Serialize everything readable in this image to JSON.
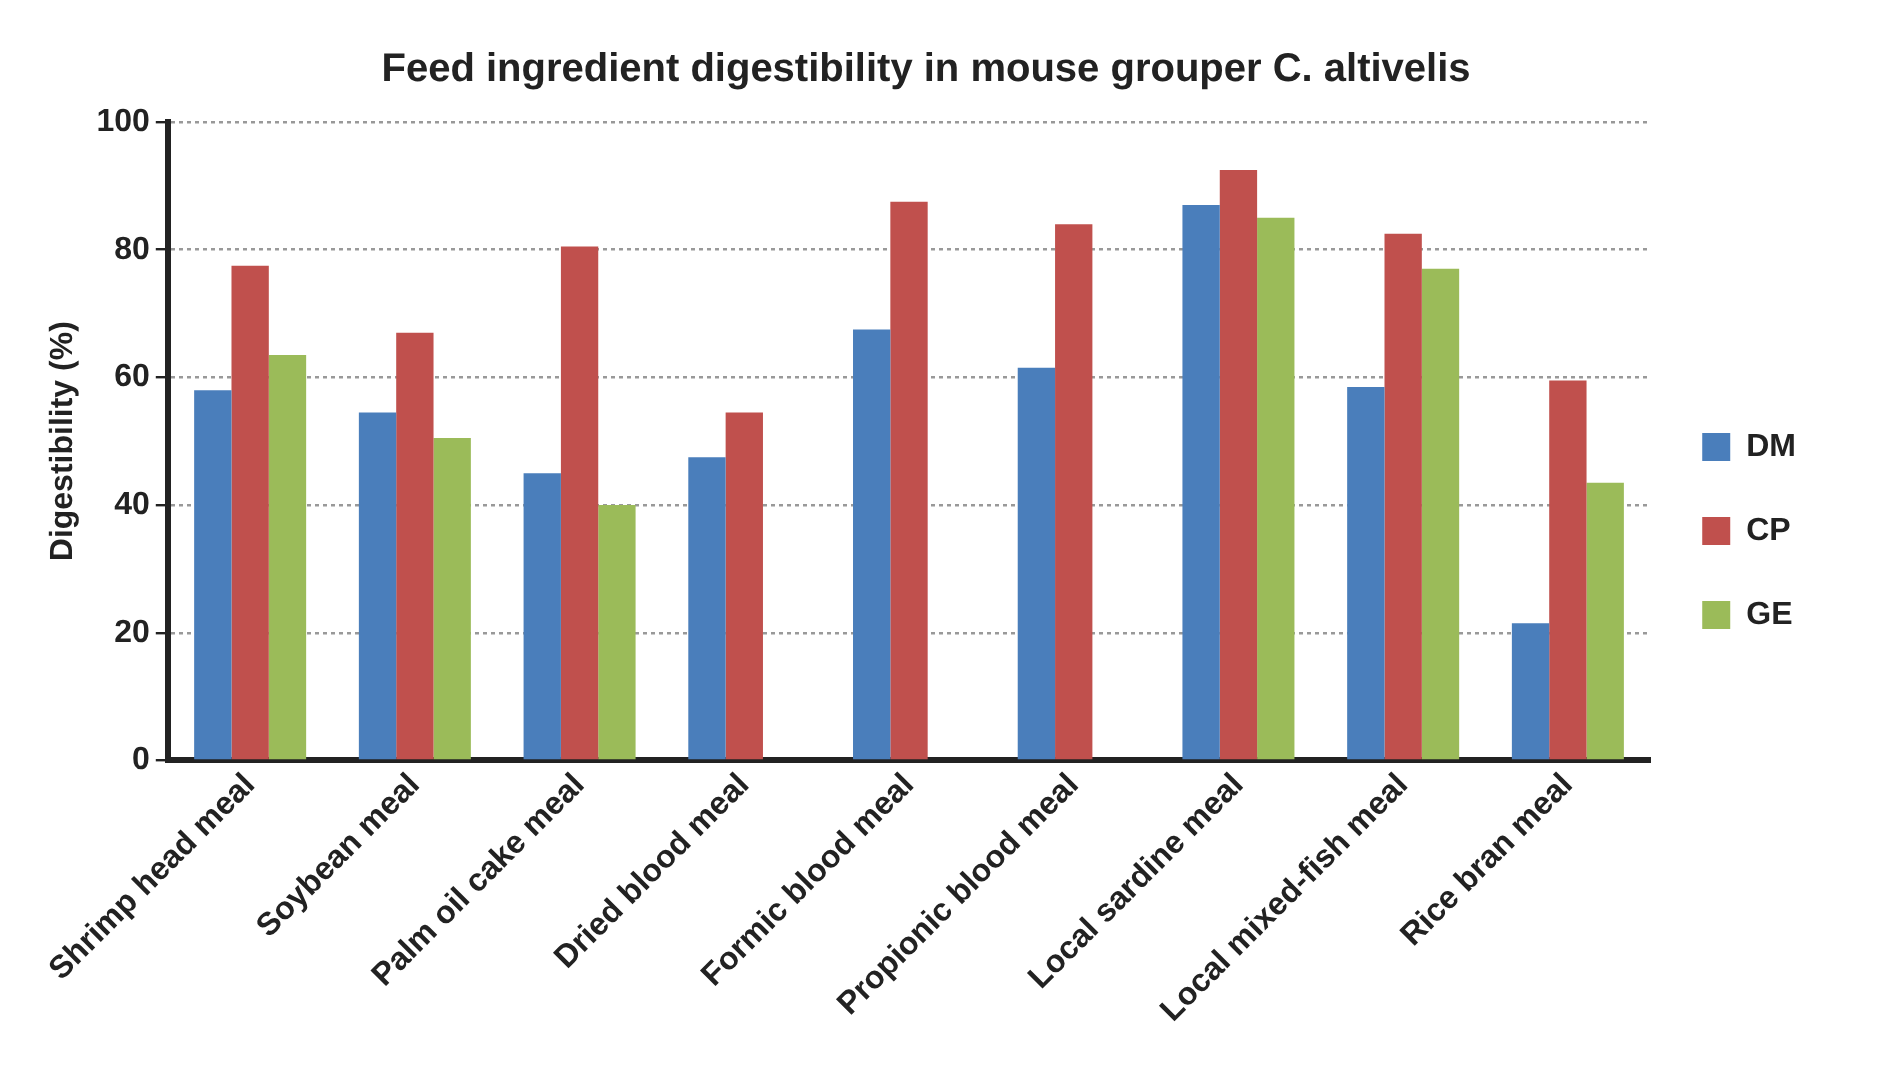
{
  "chart_data": {
    "type": "bar",
    "title": "Feed ingredient digestibility in mouse grouper C. altivelis",
    "ylabel": "Digestibility (%)",
    "categories": [
      "Shrimp head meal",
      "Soybean meal",
      "Palm oil cake meal",
      "Dried blood meal",
      "Formic blood meal",
      "Propionic blood meal",
      "Local sardine meal",
      "Local mixed-fish meal",
      "Rice bran meal"
    ],
    "series": [
      {
        "name": "DM",
        "color": "#4a7ebb",
        "values": [
          58,
          54.5,
          45,
          47.5,
          67.5,
          61.5,
          87,
          58.5,
          21.5
        ]
      },
      {
        "name": "CP",
        "color": "#c0504d",
        "values": [
          77.5,
          67,
          80.5,
          54.5,
          87.5,
          84,
          92.5,
          82.5,
          59.5
        ]
      },
      {
        "name": "GE",
        "color": "#9bbb59",
        "values": [
          63.5,
          50.5,
          40,
          null,
          null,
          null,
          85,
          77,
          43.5
        ]
      }
    ],
    "ylim": [
      0,
      100
    ],
    "yticks": [
      0,
      20,
      40,
      60,
      80,
      100
    ],
    "grid": "y",
    "legend": "right"
  }
}
